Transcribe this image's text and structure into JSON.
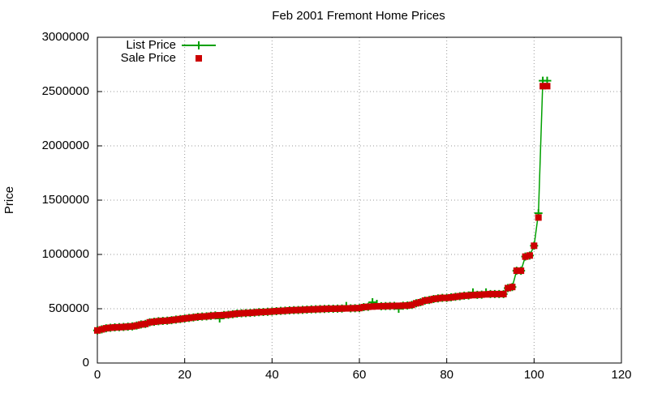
{
  "chart_data": {
    "type": "line",
    "title": "Feb 2001 Fremont Home Prices",
    "y_label": "Price",
    "x": [
      0,
      1,
      2,
      3,
      4,
      5,
      6,
      7,
      8,
      9,
      10,
      11,
      12,
      13,
      14,
      15,
      16,
      17,
      18,
      19,
      20,
      21,
      22,
      23,
      24,
      25,
      26,
      27,
      28,
      29,
      30,
      31,
      32,
      33,
      34,
      35,
      36,
      37,
      38,
      39,
      40,
      41,
      42,
      43,
      44,
      45,
      46,
      47,
      48,
      49,
      50,
      51,
      52,
      53,
      54,
      55,
      56,
      57,
      58,
      59,
      60,
      61,
      62,
      63,
      64,
      65,
      66,
      67,
      68,
      69,
      70,
      71,
      72,
      73,
      74,
      75,
      76,
      77,
      78,
      79,
      80,
      81,
      82,
      83,
      84,
      85,
      86,
      87,
      88,
      89,
      90,
      91,
      92,
      93,
      94,
      95,
      96,
      97,
      98,
      99,
      100,
      101,
      102,
      103
    ],
    "series": [
      {
        "name": "List Price",
        "color": "#00a000",
        "style": "linespoints",
        "values": [
          300000,
          310000,
          320000,
          325000,
          328000,
          330000,
          332000,
          335000,
          338000,
          345000,
          355000,
          360000,
          375000,
          380000,
          385000,
          388000,
          390000,
          395000,
          400000,
          405000,
          410000,
          415000,
          420000,
          425000,
          428000,
          430000,
          435000,
          438000,
          410000,
          442000,
          445000,
          450000,
          455000,
          458000,
          460000,
          462000,
          465000,
          468000,
          470000,
          472000,
          475000,
          478000,
          480000,
          482000,
          485000,
          487000,
          488000,
          490000,
          492000,
          494000,
          495000,
          497000,
          498000,
          500000,
          500000,
          501000,
          502000,
          525000,
          504000,
          505000,
          506000,
          515000,
          518000,
          560000,
          545000,
          523000,
          524000,
          525000,
          526000,
          500000,
          528000,
          530000,
          535000,
          550000,
          560000,
          575000,
          580000,
          590000,
          595000,
          600000,
          600000,
          605000,
          610000,
          615000,
          620000,
          622000,
          650000,
          628000,
          630000,
          650000,
          635000,
          635000,
          635000,
          635000,
          690000,
          700000,
          850000,
          850000,
          980000,
          990000,
          1080000,
          1380000,
          2600000,
          2600000
        ]
      },
      {
        "name": "Sale Price",
        "color": "#cc0000",
        "style": "points",
        "values": [
          300000,
          310000,
          320000,
          325000,
          328000,
          330000,
          332000,
          335000,
          338000,
          345000,
          355000,
          360000,
          375000,
          380000,
          385000,
          388000,
          390000,
          395000,
          400000,
          405000,
          410000,
          415000,
          420000,
          425000,
          428000,
          430000,
          435000,
          438000,
          440000,
          442000,
          445000,
          450000,
          455000,
          458000,
          460000,
          462000,
          465000,
          468000,
          470000,
          472000,
          475000,
          478000,
          480000,
          482000,
          485000,
          487000,
          488000,
          490000,
          492000,
          494000,
          495000,
          497000,
          498000,
          500000,
          500000,
          501000,
          502000,
          503000,
          504000,
          505000,
          506000,
          515000,
          518000,
          520000,
          522000,
          523000,
          524000,
          525000,
          526000,
          527000,
          528000,
          530000,
          535000,
          550000,
          560000,
          575000,
          580000,
          590000,
          595000,
          600000,
          600000,
          605000,
          610000,
          615000,
          620000,
          622000,
          625000,
          628000,
          630000,
          632000,
          635000,
          635000,
          635000,
          635000,
          690000,
          700000,
          850000,
          850000,
          980000,
          990000,
          1080000,
          1340000,
          2550000,
          2550000
        ]
      }
    ],
    "xlim": [
      0,
      120
    ],
    "xticks": [
      0,
      20,
      40,
      60,
      80,
      100,
      120
    ],
    "ylim": [
      0,
      3000000
    ],
    "yticks": [
      0,
      500000,
      1000000,
      1500000,
      2000000,
      2500000,
      3000000
    ],
    "grid": true,
    "legend": "top-left"
  }
}
